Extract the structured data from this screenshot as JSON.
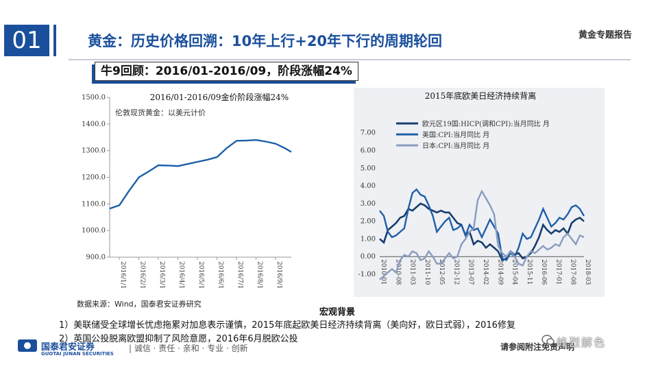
{
  "header": {
    "section_number": "01",
    "title": "黄金：历史价格回溯：10年上行+20年下行的周期轮回",
    "report_tag": "黄金专题报告"
  },
  "subtitle": "牛9回顾：2016/01-2016/09，阶段涨幅24%",
  "chart_data": [
    {
      "type": "line",
      "title": "2016/01-2016/09金价阶段涨幅24%",
      "legend": [
        "伦敦现货黄金：以美元计价"
      ],
      "x_ticks": [
        "2016/1/1",
        "2016/2/1",
        "2016/3/1",
        "2016/4/1",
        "2016/5/1",
        "2016/6/1",
        "2016/7/1",
        "2016/8/1",
        "2016/9/1"
      ],
      "y_ticks": [
        "900.0",
        "1000.0",
        "1100.0",
        "1200.0",
        "1300.0",
        "1400.0",
        "1500.0"
      ],
      "ylim": [
        900,
        1500
      ],
      "series": [
        {
          "name": "伦敦现货黄金：以美元计价",
          "color": "#1a5fa8",
          "points": [
            [
              0,
              1082
            ],
            [
              0.5,
              1095
            ],
            [
              1,
              1150
            ],
            [
              1.5,
              1200
            ],
            [
              2,
              1222
            ],
            [
              2.5,
              1245
            ],
            [
              3,
              1244
            ],
            [
              3.5,
              1242
            ],
            [
              4,
              1250
            ],
            [
              4.5,
              1258
            ],
            [
              5,
              1266
            ],
            [
              5.5,
              1276
            ],
            [
              6,
              1310
            ],
            [
              6.5,
              1337
            ],
            [
              7,
              1338
            ],
            [
              7.5,
              1340
            ],
            [
              8,
              1334
            ],
            [
              8.5,
              1326
            ],
            [
              9,
              1308
            ],
            [
              9.3,
              1295
            ]
          ]
        }
      ]
    },
    {
      "type": "line",
      "title": "2015年底欧美日经济持续背离",
      "y_ticks": [
        "-1.00",
        "0.00",
        "1.00",
        "2.00",
        "3.00",
        "4.00",
        "5.00",
        "6.00",
        "7.00"
      ],
      "ylim": [
        -1,
        7.3
      ],
      "x_ticks": [
        "2010-01",
        "2010-08",
        "2011-03",
        "2011-10",
        "2012-05",
        "2012-12",
        "2013-07",
        "2014-02",
        "2014-09",
        "2015-04",
        "2015-11",
        "2016-06",
        "2017-01",
        "2017-08",
        "2018-03"
      ],
      "series": [
        {
          "name": "欧元区19国:HICP(调和CPI):当月同比 月",
          "color": "#173c6e",
          "points": [
            [
              0,
              1.0
            ],
            [
              2,
              0.8
            ],
            [
              4,
              1.5
            ],
            [
              6,
              1.7
            ],
            [
              8,
              1.9
            ],
            [
              10,
              2.2
            ],
            [
              12,
              2.3
            ],
            [
              14,
              2.7
            ],
            [
              16,
              2.6
            ],
            [
              18,
              2.8
            ],
            [
              20,
              3.0
            ],
            [
              22,
              2.9
            ],
            [
              24,
              2.7
            ],
            [
              26,
              2.6
            ],
            [
              28,
              2.5
            ],
            [
              30,
              2.6
            ],
            [
              32,
              2.5
            ],
            [
              34,
              2.5
            ],
            [
              36,
              2.2
            ],
            [
              38,
              1.9
            ],
            [
              40,
              1.8
            ],
            [
              42,
              1.2
            ],
            [
              44,
              1.4
            ],
            [
              46,
              0.7
            ],
            [
              48,
              0.9
            ],
            [
              50,
              0.8
            ],
            [
              52,
              0.5
            ],
            [
              54,
              0.7
            ],
            [
              56,
              0.5
            ],
            [
              58,
              0.3
            ],
            [
              60,
              -0.2
            ],
            [
              62,
              -0.1
            ],
            [
              64,
              0.3
            ],
            [
              66,
              0.1
            ],
            [
              68,
              0.2
            ],
            [
              70,
              -0.1
            ],
            [
              72,
              0.0
            ],
            [
              74,
              0.2
            ],
            [
              76,
              0.6
            ],
            [
              78,
              1.1
            ],
            [
              80,
              1.8
            ],
            [
              82,
              1.5
            ],
            [
              84,
              1.3
            ],
            [
              86,
              1.5
            ],
            [
              88,
              1.4
            ],
            [
              90,
              1.6
            ],
            [
              92,
              1.3
            ],
            [
              94,
              1.9
            ],
            [
              96,
              2.1
            ],
            [
              98,
              2.2
            ],
            [
              100,
              2.0
            ]
          ]
        },
        {
          "name": "美国:CPI:当月同比 月",
          "color": "#1f5ea8",
          "points": [
            [
              0,
              2.6
            ],
            [
              2,
              2.3
            ],
            [
              4,
              1.4
            ],
            [
              6,
              1.1
            ],
            [
              8,
              1.2
            ],
            [
              10,
              1.4
            ],
            [
              12,
              1.6
            ],
            [
              14,
              2.7
            ],
            [
              16,
              3.6
            ],
            [
              18,
              3.8
            ],
            [
              20,
              3.5
            ],
            [
              22,
              3.4
            ],
            [
              24,
              2.9
            ],
            [
              26,
              2.3
            ],
            [
              28,
              1.4
            ],
            [
              30,
              1.7
            ],
            [
              32,
              2.0
            ],
            [
              34,
              2.2
            ],
            [
              36,
              1.5
            ],
            [
              38,
              1.6
            ],
            [
              40,
              1.8
            ],
            [
              42,
              1.2
            ],
            [
              44,
              1.8
            ],
            [
              46,
              1.5
            ],
            [
              48,
              1.6
            ],
            [
              50,
              1.1
            ],
            [
              52,
              1.6
            ],
            [
              54,
              2.1
            ],
            [
              56,
              1.7
            ],
            [
              58,
              1.3
            ],
            [
              60,
              -0.1
            ],
            [
              62,
              -0.2
            ],
            [
              64,
              0.2
            ],
            [
              66,
              0.0
            ],
            [
              68,
              0.5
            ],
            [
              70,
              1.3
            ],
            [
              72,
              1.0
            ],
            [
              74,
              1.1
            ],
            [
              76,
              1.6
            ],
            [
              78,
              2.1
            ],
            [
              80,
              2.7
            ],
            [
              82,
              2.2
            ],
            [
              84,
              1.7
            ],
            [
              86,
              1.9
            ],
            [
              88,
              2.2
            ],
            [
              90,
              2.1
            ],
            [
              92,
              2.4
            ],
            [
              94,
              2.8
            ],
            [
              96,
              2.9
            ],
            [
              98,
              2.7
            ],
            [
              100,
              2.3
            ]
          ]
        },
        {
          "name": "日本:CPI:当月同比 月",
          "color": "#8a9bbd",
          "points": [
            [
              0,
              -1.3
            ],
            [
              2,
              -1.1
            ],
            [
              4,
              -0.9
            ],
            [
              6,
              -0.7
            ],
            [
              8,
              -0.9
            ],
            [
              10,
              -0.2
            ],
            [
              12,
              0.1
            ],
            [
              14,
              0.0
            ],
            [
              16,
              0.3
            ],
            [
              18,
              0.2
            ],
            [
              20,
              -0.2
            ],
            [
              22,
              -0.1
            ],
            [
              24,
              0.3
            ],
            [
              26,
              0.0
            ],
            [
              28,
              -0.4
            ],
            [
              30,
              -0.4
            ],
            [
              32,
              -0.1
            ],
            [
              34,
              0.2
            ],
            [
              36,
              -0.1
            ],
            [
              38,
              0.0
            ],
            [
              40,
              0.7
            ],
            [
              42,
              1.0
            ],
            [
              44,
              1.4
            ],
            [
              46,
              1.6
            ],
            [
              48,
              3.2
            ],
            [
              50,
              3.7
            ],
            [
              52,
              3.3
            ],
            [
              54,
              2.9
            ],
            [
              56,
              2.4
            ],
            [
              58,
              0.6
            ],
            [
              60,
              0.2
            ],
            [
              62,
              0.0
            ],
            [
              64,
              0.3
            ],
            [
              66,
              0.0
            ],
            [
              68,
              -0.4
            ],
            [
              70,
              -0.5
            ],
            [
              72,
              0.0
            ],
            [
              74,
              0.3
            ],
            [
              76,
              0.2
            ],
            [
              78,
              0.4
            ],
            [
              80,
              0.6
            ],
            [
              82,
              0.4
            ],
            [
              84,
              0.5
            ],
            [
              86,
              0.7
            ],
            [
              88,
              0.6
            ],
            [
              90,
              1.1
            ],
            [
              92,
              1.3
            ],
            [
              94,
              1.0
            ],
            [
              96,
              0.7
            ],
            [
              98,
              1.2
            ],
            [
              100,
              1.1
            ]
          ]
        }
      ]
    }
  ],
  "source": "数据来源：Wind，国泰君安证券研究",
  "background": {
    "heading": "宏观背景",
    "lines": [
      "1）美联储受全球增长忧虑拖累对加息表示谨慎，2015年底起欧美日经济持续背离（美向好，欧日式弱），2016修复",
      "2）英国公投脱离欧盟抑制了风险意愿，2016年6月脱欧公投"
    ]
  },
  "footer": {
    "company_cn": "国泰君安证券",
    "company_en": "GUOTAI JUNAN SECURITIES",
    "slogan": "| 诚信 · 责任 · 亲和 · 专业 · 创新",
    "disclaimer": "请参阅附注免责声明",
    "watermark": "峰烈解色"
  }
}
